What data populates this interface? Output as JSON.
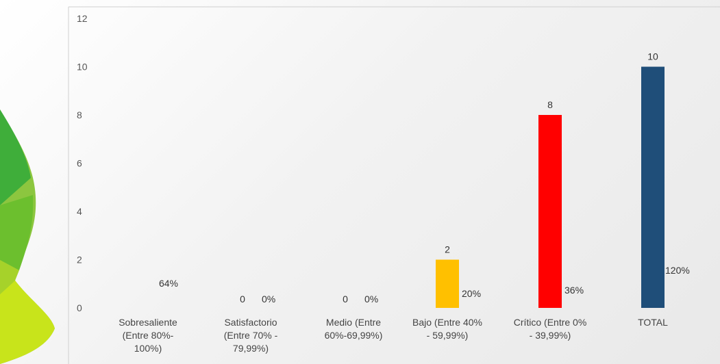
{
  "chart_data": {
    "type": "bar",
    "categories": [
      [
        "Sobresaliente",
        "(Entre 80%-",
        "100%)"
      ],
      [
        "Satisfactorio",
        "(Entre 70% -",
        "79,99%)"
      ],
      [
        "Medio (Entre",
        "60%-69,99%)"
      ],
      [
        "Bajo (Entre 40%",
        "- 59,99%)"
      ],
      [
        "Crítico (Entre 0%",
        "- 39,99%)"
      ],
      [
        "TOTAL"
      ]
    ],
    "values": [
      null,
      0,
      0,
      2,
      8,
      10
    ],
    "value_labels": [
      "",
      "0",
      "0",
      "2",
      "8",
      "10"
    ],
    "percent_labels": [
      "64%",
      "0%",
      "0%",
      "20%",
      "36%",
      "120%"
    ],
    "colors": [
      "#7cb342",
      "#7cb342",
      "#7cb342",
      "#ffc000",
      "#ff0000",
      "#1f4e79"
    ],
    "yticks": [
      "0",
      "2",
      "4",
      "6",
      "8",
      "10",
      "12"
    ],
    "ylim": [
      0,
      12
    ],
    "grid": false,
    "legend": "none"
  }
}
